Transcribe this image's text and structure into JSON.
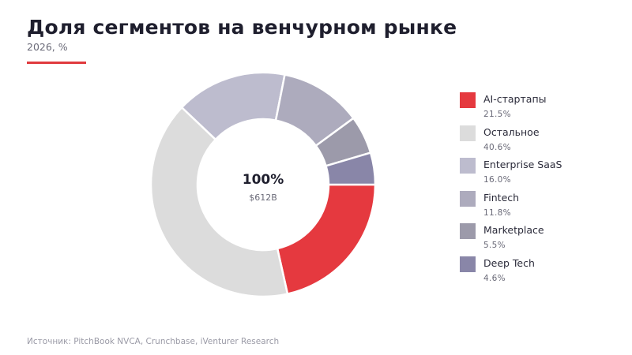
{
  "header": {
    "title": "Доля сегментов на венчурном рынке",
    "subtitle": "2026, %"
  },
  "colors": {
    "accent": "#e03a3e",
    "background": "#ffffff"
  },
  "chart_data": {
    "type": "pie",
    "variant": "donut",
    "title": "Доля сегментов на венчурном рынке",
    "subtitle": "2026, %",
    "center_label": "100%",
    "center_sublabel": "$612B",
    "legend_position": "right",
    "slices": [
      {
        "name": "AI-стартапы",
        "value": 21.5,
        "value_label": "21.5%",
        "color": "#e5393f"
      },
      {
        "name": "Остальное",
        "value": 40.6,
        "value_label": "40.6%",
        "color": "#dcdcdc"
      },
      {
        "name": "Enterprise SaaS",
        "value": 16.0,
        "value_label": "16.0%",
        "color": "#bdbcce"
      },
      {
        "name": "Fintech",
        "value": 11.8,
        "value_label": "11.8%",
        "color": "#adabbd"
      },
      {
        "name": "Marketplace",
        "value": 5.5,
        "value_label": "5.5%",
        "color": "#9c9aaa"
      },
      {
        "name": "Deep Tech",
        "value": 4.6,
        "value_label": "4.6%",
        "color": "#8986a8"
      }
    ]
  },
  "footer": {
    "source": "Источник: PitchBook NVCA, Crunchbase, iVenturer Research"
  }
}
